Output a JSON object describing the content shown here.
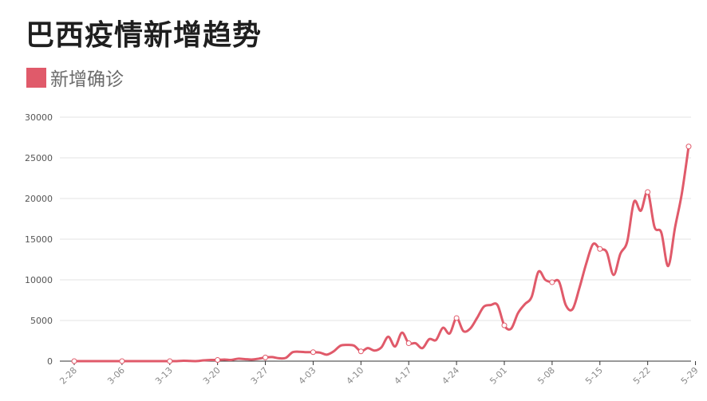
{
  "chart_data": {
    "type": "line",
    "title": "巴西疫情新增趋势",
    "xlabel": "",
    "ylabel": "",
    "ylim": [
      0,
      30000
    ],
    "yticks": [
      0,
      5000,
      10000,
      15000,
      20000,
      25000,
      30000
    ],
    "grid": true,
    "legend_position": "top-left",
    "color": "#e05a6a",
    "x_tick_labels": [
      "2-28",
      "3-06",
      "3-13",
      "3-20",
      "3-27",
      "4-03",
      "4-10",
      "4-17",
      "4-24",
      "5-01",
      "5-08",
      "5-15",
      "5-22",
      "5-29"
    ],
    "series": [
      {
        "name": "新增确诊",
        "values": [
          0,
          0,
          0,
          0,
          0,
          0,
          0,
          0,
          0,
          0,
          0,
          0,
          0,
          0,
          0,
          0,
          50,
          20,
          10,
          100,
          150,
          150,
          200,
          150,
          300,
          250,
          200,
          300,
          450,
          500,
          350,
          400,
          1100,
          1150,
          1100,
          1100,
          1050,
          800,
          1200,
          1900,
          2000,
          1900,
          1200,
          1600,
          1300,
          1700,
          3000,
          1800,
          3500,
          2200,
          2200,
          1600,
          2700,
          2600,
          4100,
          3400,
          5300,
          3700,
          4000,
          5300,
          6700,
          6900,
          6900,
          4400,
          4000,
          5900,
          7000,
          7900,
          11000,
          10000,
          9700,
          9800,
          6900,
          6400,
          9000,
          12000,
          14400,
          13800,
          13400,
          10600,
          13200,
          14700,
          19600,
          18500,
          20800,
          16500,
          15800,
          11700,
          16400,
          20600,
          26400
        ]
      }
    ]
  }
}
